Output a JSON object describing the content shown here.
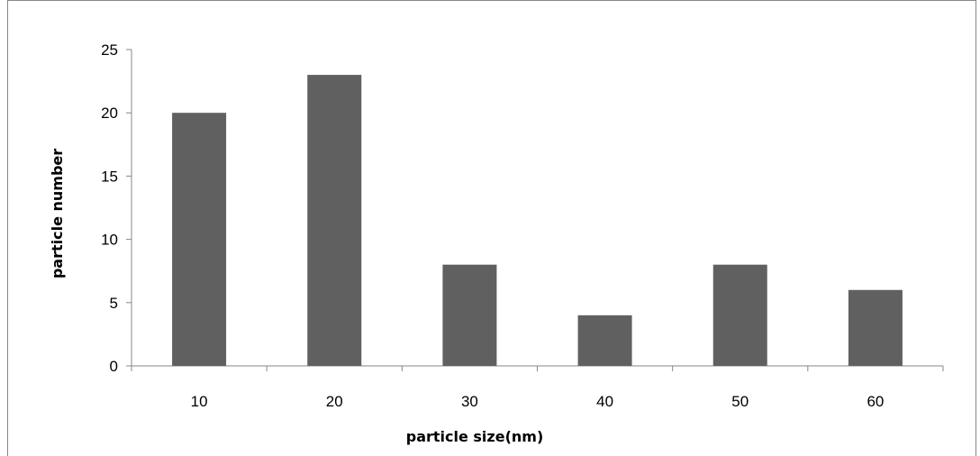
{
  "chart_data": {
    "type": "bar",
    "title": "",
    "xlabel": "particle size(nm)",
    "ylabel": "particle number",
    "categories": [
      "10",
      "20",
      "30",
      "40",
      "50",
      "60"
    ],
    "values": [
      20,
      23,
      8,
      4,
      8,
      6
    ],
    "ylim": [
      0,
      25
    ],
    "yticks": [
      "0",
      "5",
      "10",
      "15",
      "20",
      "25"
    ],
    "grid": false,
    "legend": "none",
    "bar_color": "#606060",
    "axis_color": "#878787"
  }
}
